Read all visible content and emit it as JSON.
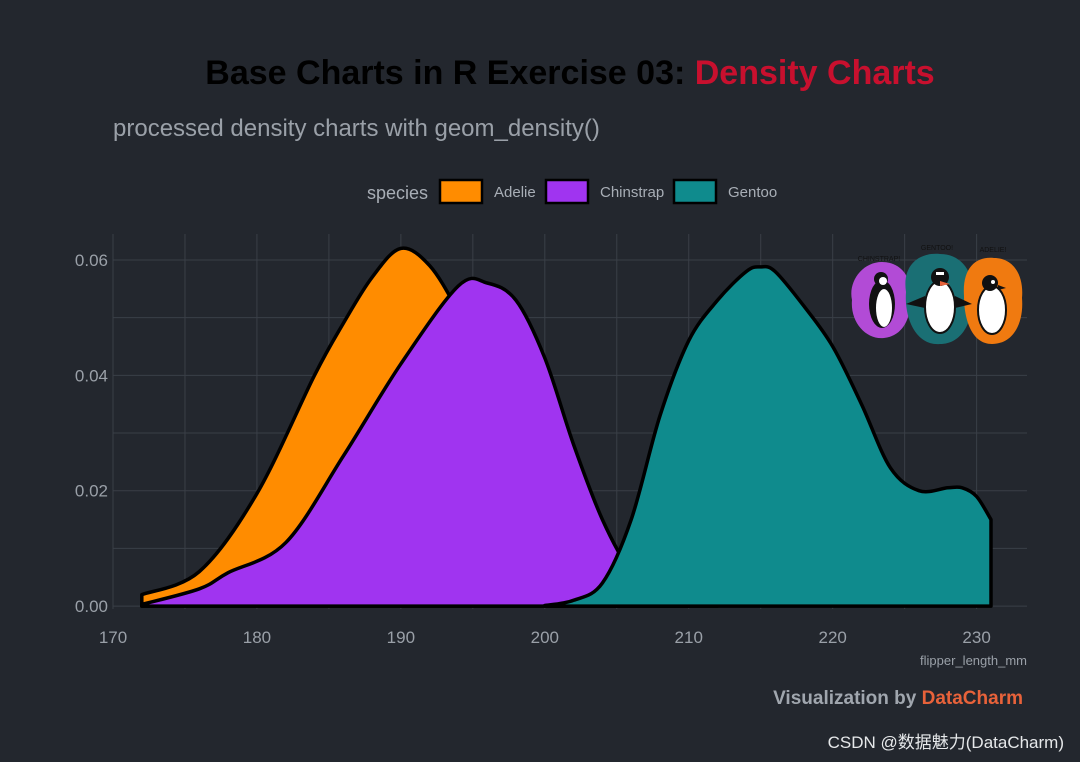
{
  "title": {
    "main": "Base Charts in R Exercise 03: ",
    "highlight": "Density Charts"
  },
  "subtitle": "processed density charts with geom_density()",
  "legend": {
    "title": "species"
  },
  "caption": {
    "prefix": "Visualization by ",
    "brand": "DataCharm"
  },
  "watermark": "CSDN @数据魅力(DataCharm)",
  "inset_labels": [
    "CHINSTRAP!",
    "GENTOO!",
    "ADELIE!"
  ],
  "colors": {
    "background": "#23272e",
    "title": "#000000",
    "title_highlight": "#c8102e",
    "Adelie": "#ff8c00",
    "Chinstrap": "#a034f0",
    "Gentoo": "#0f8b8d",
    "brand": "#e8623a"
  },
  "chart_data": {
    "type": "area",
    "xlabel": "flipper_length_mm",
    "ylabel": "",
    "xlim": [
      170,
      233.5
    ],
    "ylim": [
      -0.0005,
      0.0645
    ],
    "xticks": [
      170,
      180,
      190,
      200,
      210,
      220,
      230
    ],
    "yticks": [
      0.0,
      0.02,
      0.04,
      0.06
    ],
    "ytick_labels": [
      "0.00",
      "0.02",
      "0.04",
      "0.06"
    ],
    "grid": true,
    "legend_position": "top",
    "series": [
      {
        "name": "Adelie",
        "x": [
          172,
          176,
          180,
          184,
          186,
          188,
          190,
          192,
          194,
          196,
          198,
          200,
          202,
          204,
          206,
          208,
          210
        ],
        "values": [
          0.002,
          0.006,
          0.0195,
          0.04,
          0.049,
          0.057,
          0.062,
          0.059,
          0.051,
          0.041,
          0.029,
          0.018,
          0.01,
          0.005,
          0.002,
          0.001,
          0.0002
        ]
      },
      {
        "name": "Chinstrap",
        "x": [
          172,
          176,
          178,
          182,
          186,
          190,
          194,
          196,
          198,
          200,
          202,
          204,
          206,
          208,
          210,
          212
        ],
        "values": [
          0.0003,
          0.003,
          0.0058,
          0.011,
          0.026,
          0.042,
          0.0555,
          0.056,
          0.053,
          0.043,
          0.028,
          0.015,
          0.006,
          0.002,
          0.0007,
          0.0002
        ]
      },
      {
        "name": "Gentoo",
        "x": [
          200,
          202,
          204,
          206,
          208,
          210,
          212,
          214,
          215,
          216,
          218,
          220,
          222,
          224,
          226,
          228,
          229,
          230,
          231
        ],
        "values": [
          0.0001,
          0.001,
          0.004,
          0.015,
          0.033,
          0.046,
          0.053,
          0.058,
          0.0588,
          0.058,
          0.052,
          0.045,
          0.035,
          0.024,
          0.02,
          0.0205,
          0.0205,
          0.019,
          0.015
        ]
      }
    ]
  }
}
